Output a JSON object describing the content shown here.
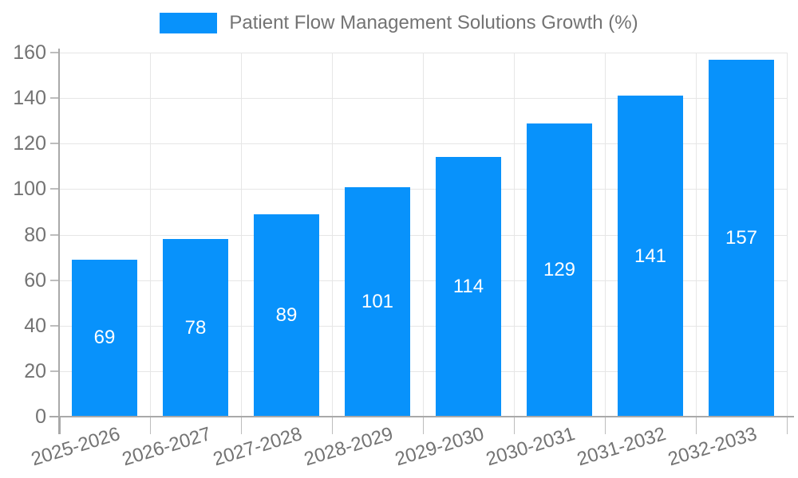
{
  "legend": {
    "label": "Patient Flow Management Solutions Growth (%)"
  },
  "colors": {
    "bar": "#0892fb",
    "bar_label": "#ffffff",
    "grid": "#e6e6e6",
    "axis": "#a9a9a9",
    "tick": "#bdbdbd",
    "text": "#737373",
    "background": "#ffffff"
  },
  "chart_data": {
    "type": "bar",
    "title": "Patient Flow Management Solutions Growth (%)",
    "categories": [
      "2025-2026",
      "2026-2027",
      "2027-2028",
      "2028-2029",
      "2029-2030",
      "2030-2031",
      "2031-2032",
      "2032-2033"
    ],
    "values": [
      69,
      78,
      89,
      101,
      114,
      129,
      141,
      157
    ],
    "xlabel": "",
    "ylabel": "",
    "ylim": [
      0,
      160
    ],
    "yticks": [
      0,
      20,
      40,
      60,
      80,
      100,
      120,
      140,
      160
    ],
    "grid": true,
    "legend_position": "top",
    "bar_value_labels": "inside-center",
    "x_label_rotation_deg": -17
  }
}
